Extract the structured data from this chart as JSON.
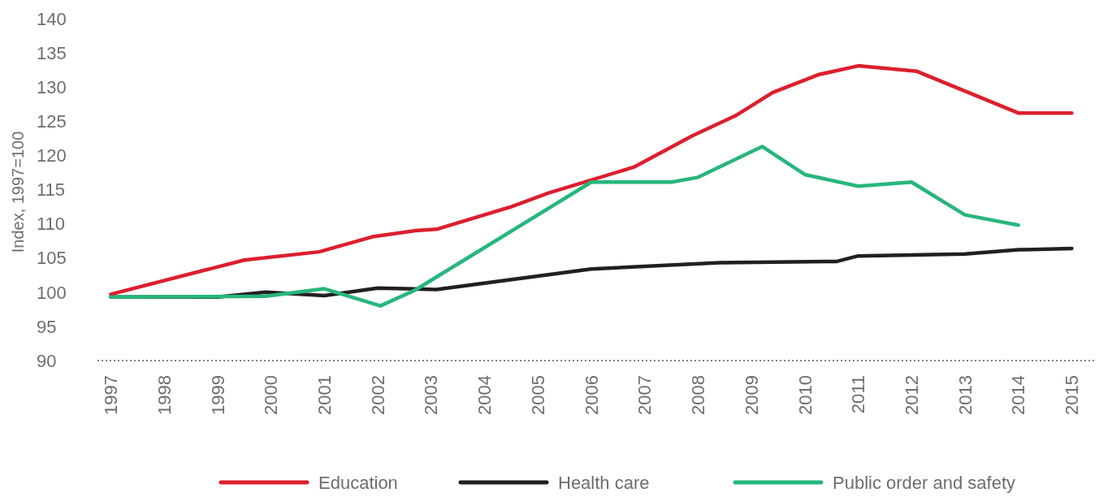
{
  "chart_data": {
    "type": "line",
    "ylabel": "Index, 1997=100",
    "xlim": [
      1996.75,
      2015.45
    ],
    "xticks": [
      1997,
      1998,
      1999,
      2000,
      2001,
      2002,
      2003,
      2004,
      2005,
      2006,
      2007,
      2008,
      2009,
      2010,
      2011,
      2012,
      2013,
      2014,
      2015
    ],
    "ylim": [
      90,
      140
    ],
    "yticks": [
      90,
      95,
      100,
      105,
      110,
      115,
      120,
      125,
      130,
      135,
      140
    ],
    "grid": false,
    "legend": "bottom",
    "marker": "none",
    "line_style": "solid",
    "series": [
      {
        "name": "Education",
        "color": "#dc1f2e",
        "x": [
          1997,
          1999.5,
          2000.9,
          2001.9,
          2002.7,
          2003.1,
          2004.5,
          2005.2,
          2006.8,
          2007.9,
          2008.7,
          2009.4,
          2010.25,
          2011,
          2012.1,
          2014,
          2015
        ],
        "values": [
          99.7,
          104.7,
          105.9,
          108.1,
          109,
          109.2,
          112.5,
          114.5,
          118.3,
          122.9,
          125.8,
          129.2,
          131.8,
          133.1,
          132.3,
          126.2,
          126.2
        ]
      },
      {
        "name": "Health care",
        "color": "#231f20",
        "x": [
          1997,
          1999,
          1999.9,
          2001,
          2002,
          2003.1,
          2006,
          2008.4,
          2010.6,
          2011,
          2013,
          2014,
          2015
        ],
        "values": [
          99.3,
          99.3,
          100,
          99.5,
          100.6,
          100.4,
          103.4,
          104.3,
          104.5,
          105.3,
          105.6,
          106.2,
          106.4
        ]
      },
      {
        "name": "Public order and safety",
        "color": "#27b67c",
        "x": [
          1997,
          1999.9,
          2001,
          2002.05,
          2002.7,
          2006,
          2007.5,
          2008,
          2009.2,
          2010,
          2011,
          2012,
          2013,
          2014
        ],
        "values": [
          99.3,
          99.4,
          100.5,
          98,
          100.3,
          116.1,
          116.1,
          116.8,
          121.3,
          117.2,
          115.5,
          116.1,
          111.3,
          109.8
        ]
      }
    ]
  }
}
